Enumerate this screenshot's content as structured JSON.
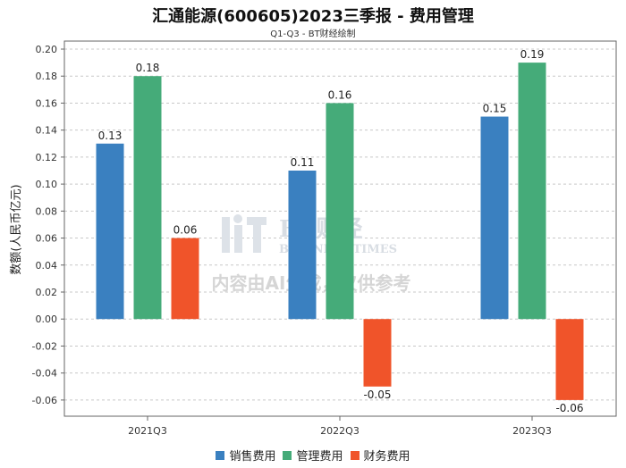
{
  "chart_data": {
    "type": "bar",
    "title": "汇通能源(600605)2023三季报 - 费用管理",
    "subtitle": "Q1-Q3 - BT财经绘制",
    "xlabel": "",
    "ylabel": "数额(人民币亿元)",
    "ylim": [
      -0.07,
      0.21
    ],
    "yticks": [
      "0.20",
      "0.18",
      "0.16",
      "0.14",
      "0.12",
      "0.10",
      "0.08",
      "0.06",
      "0.04",
      "0.02",
      "0.00",
      "-0.02",
      "-0.04",
      "-0.06"
    ],
    "categories": [
      "2021Q3",
      "2022Q3",
      "2023Q3"
    ],
    "series": [
      {
        "name": "销售费用",
        "color": "#3a80c0",
        "values": [
          0.13,
          0.11,
          0.15
        ],
        "labels": [
          "0.13",
          "0.11",
          "0.15"
        ]
      },
      {
        "name": "管理费用",
        "color": "#45ab79",
        "values": [
          0.18,
          0.16,
          0.19
        ],
        "labels": [
          "0.18",
          "0.16",
          "0.19"
        ]
      },
      {
        "name": "财务费用",
        "color": "#f0542a",
        "values": [
          0.06,
          -0.05,
          -0.06
        ],
        "labels": [
          "0.06",
          "-0.05",
          "-0.06"
        ]
      }
    ],
    "grid": true,
    "legend_position": "bottom-center"
  },
  "watermark": {
    "logo_text": "BT财经",
    "logo_sub": "BUSINESS TIMES",
    "note": "内容由AI生成，仅供参考"
  }
}
